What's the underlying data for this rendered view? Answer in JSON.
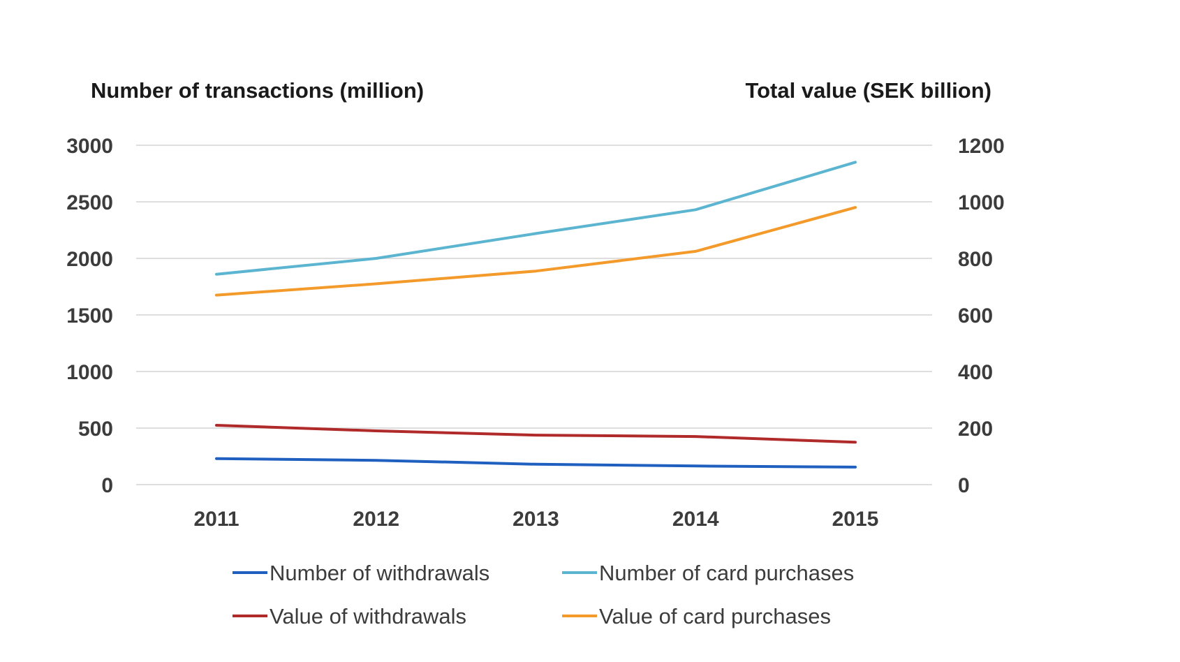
{
  "chart_data": {
    "type": "line",
    "title": "",
    "categories": [
      "2011",
      "2012",
      "2013",
      "2014",
      "2015"
    ],
    "y_left": {
      "label": "Number of transactions (million)",
      "range": [
        0,
        3000
      ],
      "ticks": [
        "0",
        "500",
        "1000",
        "1500",
        "2000",
        "2500",
        "3000"
      ]
    },
    "y_right": {
      "label": "Total value (SEK billion)",
      "range": [
        0,
        1200
      ],
      "ticks": [
        "0",
        "200",
        "400",
        "600",
        "800",
        "1000",
        "1200"
      ]
    },
    "grid": "horizontal",
    "legend_position": "bottom",
    "series": [
      {
        "name": "Number of withdrawals",
        "axis": "left",
        "color": "#1f5fbf",
        "values": [
          230,
          215,
          180,
          165,
          155
        ]
      },
      {
        "name": "Number of card purchases",
        "axis": "left",
        "color": "#5bb4d0",
        "values": [
          1860,
          2000,
          2220,
          2430,
          2850
        ]
      },
      {
        "name": "Value of withdrawals",
        "axis": "right",
        "color": "#b02a2a",
        "values": [
          210,
          190,
          175,
          170,
          150
        ]
      },
      {
        "name": "Value of card purchases",
        "axis": "right",
        "color": "#f39a2b",
        "values": [
          670,
          710,
          755,
          825,
          980
        ]
      }
    ]
  }
}
